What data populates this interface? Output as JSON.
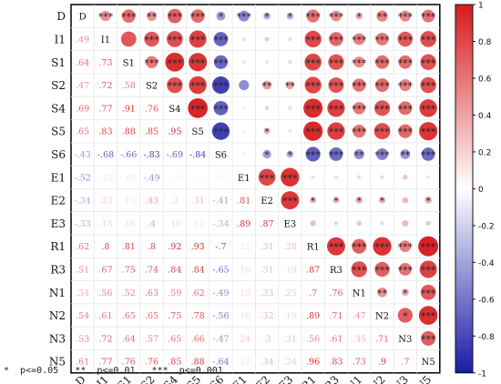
{
  "chart_data": {
    "type": "heatmap",
    "subtype": "correlation-matrix",
    "variables": [
      "D",
      "I1",
      "S1",
      "S2",
      "S4",
      "S5",
      "S6",
      "E1",
      "E2",
      "E3",
      "R1",
      "R3",
      "N1",
      "N2",
      "N3",
      "N5"
    ],
    "lower_triangle_values": [
      [],
      [
        0.49
      ],
      [
        0.64,
        0.73
      ],
      [
        0.47,
        0.72,
        0.58
      ],
      [
        0.69,
        0.77,
        0.91,
        0.76
      ],
      [
        0.65,
        0.83,
        0.88,
        0.85,
        0.95
      ],
      [
        -0.43,
        -0.68,
        -0.66,
        -0.83,
        -0.69,
        -0.84
      ],
      [
        -0.52,
        -0.12,
        -0.09,
        -0.49,
        -0.06,
        -0.05,
        0.06
      ],
      [
        -0.34,
        0.23,
        0.13,
        0.43,
        0.2,
        0.31,
        -0.41,
        0.81
      ],
      [
        -0.33,
        0.18,
        0.16,
        0.4,
        0.16,
        0.12,
        -0.34,
        0.89,
        0.87
      ],
      [
        0.62,
        0.8,
        0.81,
        0.8,
        0.92,
        0.93,
        -0.7,
        0.12,
        0.31,
        0.28
      ],
      [
        0.51,
        0.67,
        0.75,
        0.74,
        0.84,
        0.84,
        -0.65,
        0.16,
        0.31,
        0.19,
        0.87
      ],
      [
        0.34,
        0.56,
        0.52,
        0.63,
        0.59,
        0.62,
        -0.49,
        0.18,
        0.33,
        0.25,
        0.7,
        0.76
      ],
      [
        0.54,
        0.61,
        0.65,
        0.65,
        0.75,
        0.78,
        -0.56,
        0.16,
        0.32,
        0.19,
        0.89,
        0.71,
        0.47
      ],
      [
        0.53,
        0.72,
        0.64,
        0.57,
        0.65,
        0.66,
        -0.47,
        0.24,
        0.3,
        0.31,
        0.56,
        0.61,
        0.35,
        0.71
      ],
      [
        0.61,
        0.77,
        0.76,
        0.76,
        0.85,
        0.88,
        -0.64,
        0.12,
        0.34,
        0.24,
        0.96,
        0.83,
        0.73,
        0.9,
        0.7
      ]
    ],
    "significance_stars": [
      [
        "",
        "***",
        "***",
        "**",
        "***",
        "***",
        "*",
        "***",
        "*",
        "*",
        "***",
        "***",
        "*",
        "**",
        "***",
        "***"
      ],
      [
        "",
        "",
        "",
        "***",
        "***",
        "***",
        "***",
        "",
        "",
        "",
        "***",
        "***",
        "***",
        "***",
        "***",
        "***"
      ],
      [
        "",
        "",
        "",
        "***",
        "***",
        "***",
        "***",
        "",
        "",
        "",
        "***",
        "***",
        "***",
        "***",
        "***",
        "***"
      ],
      [
        "",
        "",
        "",
        "",
        "***",
        "***",
        "***",
        "",
        "**",
        "**",
        "***",
        "***",
        "***",
        "***",
        "***",
        "***"
      ],
      [
        "",
        "",
        "",
        "",
        "",
        "***",
        "***",
        "",
        "",
        "",
        "***",
        "***",
        "***",
        "***",
        "***",
        "***"
      ],
      [
        "",
        "",
        "",
        "",
        "",
        "",
        "***",
        "",
        "*",
        "",
        "***",
        "***",
        "***",
        "***",
        "***",
        "***"
      ],
      [
        "",
        "",
        "",
        "",
        "",
        "",
        "",
        "",
        "*",
        "*",
        "***",
        "***",
        "**",
        "***",
        "**",
        "***"
      ],
      [
        "",
        "",
        "",
        "",
        "",
        "",
        "",
        "",
        "***",
        "***",
        "",
        "",
        "",
        "",
        "",
        ""
      ],
      [
        "",
        "",
        "",
        "",
        "",
        "",
        "",
        "",
        "",
        "***",
        "*",
        "*",
        "*",
        "*",
        "",
        "*"
      ],
      [
        "",
        "",
        "",
        "",
        "",
        "",
        "",
        "",
        "",
        "",
        "",
        "",
        "",
        "",
        "",
        ""
      ],
      [
        "",
        "",
        "",
        "",
        "",
        "",
        "",
        "",
        "",
        "",
        "",
        "***",
        "***",
        "***",
        "***",
        "***"
      ],
      [
        "",
        "",
        "",
        "",
        "",
        "",
        "",
        "",
        "",
        "",
        "",
        "",
        "***",
        "***",
        "***",
        "***"
      ],
      [
        "",
        "",
        "",
        "",
        "",
        "",
        "",
        "",
        "",
        "",
        "",
        "",
        "",
        "**",
        "*",
        "***"
      ],
      [
        "",
        "",
        "",
        "",
        "",
        "",
        "",
        "",
        "",
        "",
        "",
        "",
        "",
        "",
        "*",
        "***"
      ],
      [
        "",
        "",
        "",
        "",
        "",
        "",
        "",
        "",
        "",
        "",
        "",
        "",
        "",
        "",
        "",
        "***"
      ],
      [
        "",
        "",
        "",
        "",
        "",
        "",
        "",
        "",
        "",
        "",
        "",
        "",
        "",
        "",
        "",
        ""
      ]
    ],
    "colorbar": {
      "ticks": [
        "1",
        "0.8",
        "0.6",
        "0.4",
        "0.2",
        "0",
        "-0.2",
        "-0.4",
        "-0.6",
        "-0.8",
        "-1"
      ],
      "high_color": "#d7191c",
      "mid_color": "#ffffff",
      "low_color": "#1a1aa6"
    },
    "legend_note": "*  p<=0.05   **  p<=0.01   ***  p<=0.001"
  }
}
